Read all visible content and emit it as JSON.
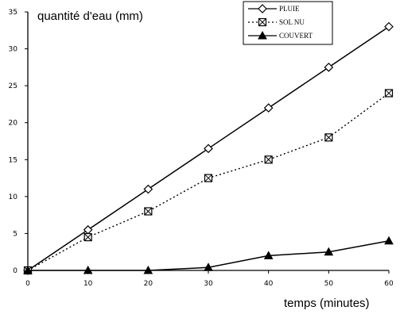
{
  "chart_data": {
    "type": "line",
    "title": "",
    "ylabel": "quantité d'eau (mm)",
    "xlabel": "temps (minutes)",
    "x": [
      0,
      10,
      20,
      30,
      40,
      50,
      60
    ],
    "xticks": [
      "0",
      "10",
      "20",
      "30",
      "40",
      "50",
      "60"
    ],
    "yticks": [
      "0",
      "5",
      "10",
      "15",
      "20",
      "25",
      "30",
      "35"
    ],
    "xlim": [
      0,
      60
    ],
    "ylim": [
      0,
      35
    ],
    "grid": false,
    "legend_position": "top-right",
    "series": [
      {
        "name": "PLUIE",
        "marker": "diamond",
        "line": "solid",
        "values": [
          0,
          5.5,
          11,
          16.5,
          22,
          27.5,
          33
        ]
      },
      {
        "name": "SOL NU",
        "marker": "crossed-square",
        "line": "dotted",
        "values": [
          0,
          4.5,
          8,
          12.5,
          15,
          18,
          24
        ]
      },
      {
        "name": "COUVERT",
        "marker": "triangle",
        "line": "solid",
        "values": [
          0,
          0,
          0,
          0.4,
          2,
          2.5,
          4
        ]
      }
    ]
  }
}
